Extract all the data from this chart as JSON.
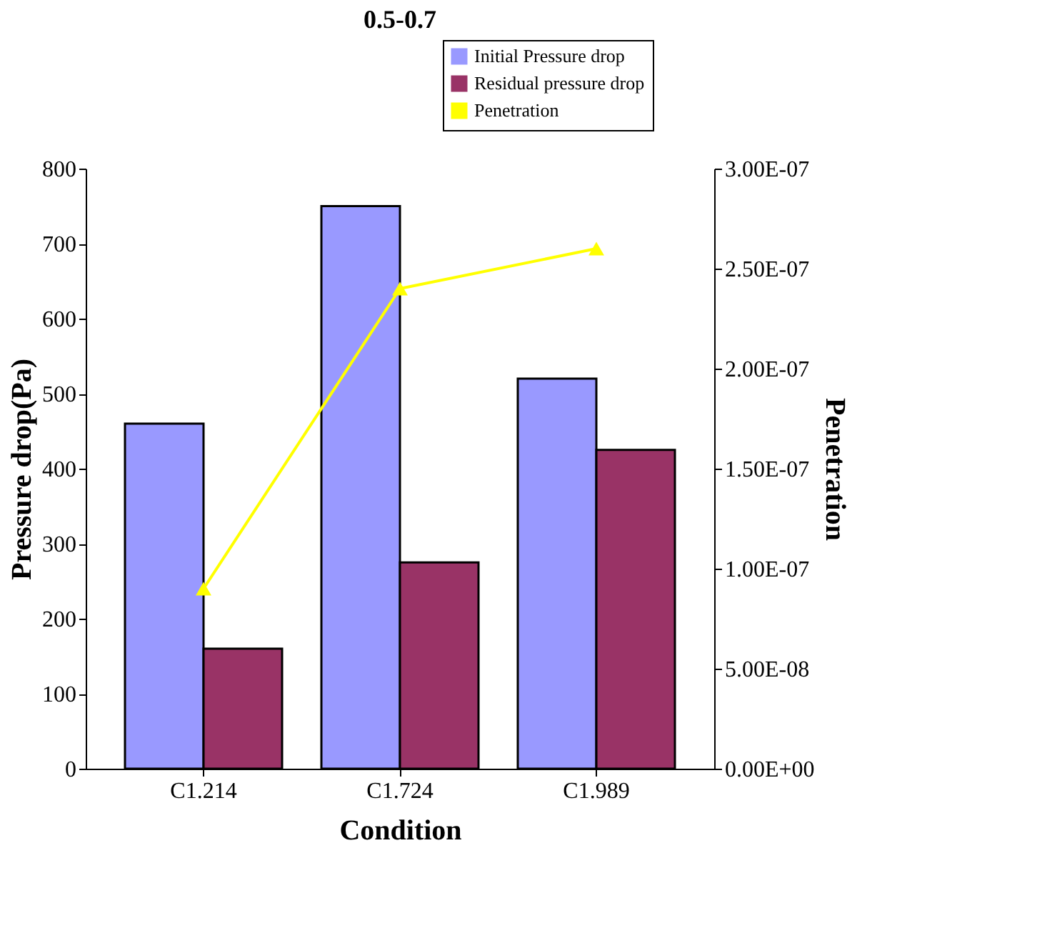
{
  "chart_data": {
    "type": "bar",
    "title": "0.5-0.7",
    "xlabel": "Condition",
    "ylabel": "Pressure drop(Pa)",
    "y2label": "Penetration",
    "categories": [
      "C1.214",
      "C1.724",
      "C1.989"
    ],
    "series": [
      {
        "name": "Initial Pressure drop",
        "color": "#9999ff",
        "values": [
          460,
          750,
          520
        ]
      },
      {
        "name": "Residual pressure drop",
        "color": "#993366",
        "values": [
          160,
          275,
          425
        ]
      },
      {
        "name": "Penetration",
        "type": "line",
        "axis": "y2",
        "color": "#ffff00",
        "marker": "triangle",
        "values": [
          9e-08,
          2.4e-07,
          2.6e-07
        ]
      }
    ],
    "ylim": [
      0,
      800
    ],
    "yticks": [
      0,
      100,
      200,
      300,
      400,
      500,
      600,
      700,
      800
    ],
    "y2lim": [
      0,
      3e-07
    ],
    "y2ticks": [
      {
        "value": 0,
        "label": "0.00E+00"
      },
      {
        "value": 5e-08,
        "label": "5.00E-08"
      },
      {
        "value": 1e-07,
        "label": "1.00E-07"
      },
      {
        "value": 1.5e-07,
        "label": "1.50E-07"
      },
      {
        "value": 2e-07,
        "label": "2.00E-07"
      },
      {
        "value": 2.5e-07,
        "label": "2.50E-07"
      },
      {
        "value": 3e-07,
        "label": "3.00E-07"
      }
    ],
    "grid": false,
    "legend": "top right"
  }
}
